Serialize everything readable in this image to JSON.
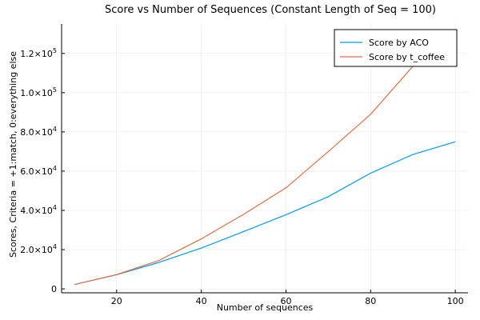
{
  "chart_data": {
    "type": "line",
    "title": "Score vs Number of Sequences (Constant Length of Seq = 100)",
    "xlabel": "Number of sequences",
    "ylabel": "Scores, Criteria = +1:match, 0:everything else",
    "x": [
      10,
      20,
      30,
      40,
      50,
      60,
      70,
      80,
      90,
      100
    ],
    "xlim": [
      7,
      103
    ],
    "ylim": [
      -2000,
      135000
    ],
    "xticks": [
      20,
      40,
      60,
      80,
      100
    ],
    "xtick_labels": [
      "20",
      "40",
      "60",
      "80",
      "100"
    ],
    "yticks": [
      0,
      20000,
      40000,
      60000,
      80000,
      100000,
      120000
    ],
    "ytick_labels": [
      {
        "mantissa": "0",
        "exp": ""
      },
      {
        "mantissa": "2.0×10",
        "exp": "4"
      },
      {
        "mantissa": "4.0×10",
        "exp": "4"
      },
      {
        "mantissa": "6.0×10",
        "exp": "4"
      },
      {
        "mantissa": "8.0×10",
        "exp": "4"
      },
      {
        "mantissa": "1.0×10",
        "exp": "5"
      },
      {
        "mantissa": "1.2×10",
        "exp": "5"
      }
    ],
    "grid": true,
    "legend_position": "top-right",
    "series": [
      {
        "name": "Score by ACO",
        "color": "#009AF9",
        "values": [
          2200,
          7200,
          13500,
          20800,
          29200,
          37800,
          47000,
          59000,
          68500,
          75000
        ]
      },
      {
        "name": "Score by t_coffee",
        "color": "#E26F46",
        "values": [
          2200,
          7300,
          14500,
          25500,
          38000,
          51500,
          70000,
          89000,
          113500,
          131500
        ]
      }
    ]
  }
}
